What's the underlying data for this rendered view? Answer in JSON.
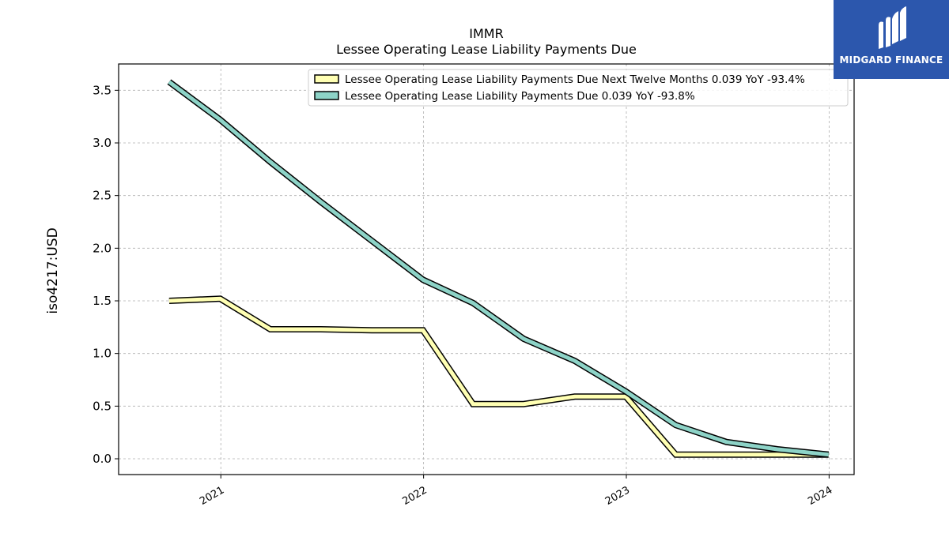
{
  "chart_data": {
    "type": "line",
    "title": "IMMR",
    "subtitle": "Lessee Operating Lease Liability Payments Due",
    "ylabel": "iso4217:USD",
    "xlabel": "",
    "ylim": [
      -0.15,
      3.75
    ],
    "xlim": [
      "2020-07-01",
      "2024-02-15"
    ],
    "yticks": [
      0.0,
      0.5,
      1.0,
      1.5,
      2.0,
      2.5,
      3.0,
      3.5
    ],
    "ytick_labels": [
      "0.0",
      "0.5",
      "1.0",
      "1.5",
      "2.0",
      "2.5",
      "3.0",
      "3.5"
    ],
    "xticks": [
      "2021-01-01",
      "2022-01-01",
      "2023-01-01",
      "2024-01-01"
    ],
    "xtick_labels": [
      "2021",
      "2022",
      "2023",
      "2024"
    ],
    "grid": true,
    "legend_position": "top-right",
    "x": [
      "2020-09-30",
      "2020-12-31",
      "2021-03-31",
      "2021-06-30",
      "2021-09-30",
      "2021-12-31",
      "2022-03-31",
      "2022-06-30",
      "2022-09-30",
      "2022-12-31",
      "2023-03-31",
      "2023-06-30",
      "2023-09-30",
      "2023-12-31"
    ],
    "series": [
      {
        "name": "Lessee Operating Lease Liability Payments Due Next Twelve Months  0.039 YoY -93.4%",
        "color": "#ffffb3",
        "values": [
          1.5,
          1.52,
          1.23,
          1.23,
          1.22,
          1.22,
          0.52,
          0.52,
          0.59,
          0.59,
          0.04,
          0.04,
          0.04,
          0.04
        ]
      },
      {
        "name": "Lessee Operating Lease Liability Payments Due  0.039 YoY -93.8%",
        "color": "#8dd3c7",
        "values": [
          3.58,
          3.22,
          2.82,
          2.44,
          2.07,
          1.7,
          1.48,
          1.14,
          0.93,
          0.64,
          0.32,
          0.16,
          0.09,
          0.04
        ]
      }
    ]
  },
  "logo": {
    "text": "MIDGARD FINANCE",
    "bg_color": "#2c57ad"
  }
}
